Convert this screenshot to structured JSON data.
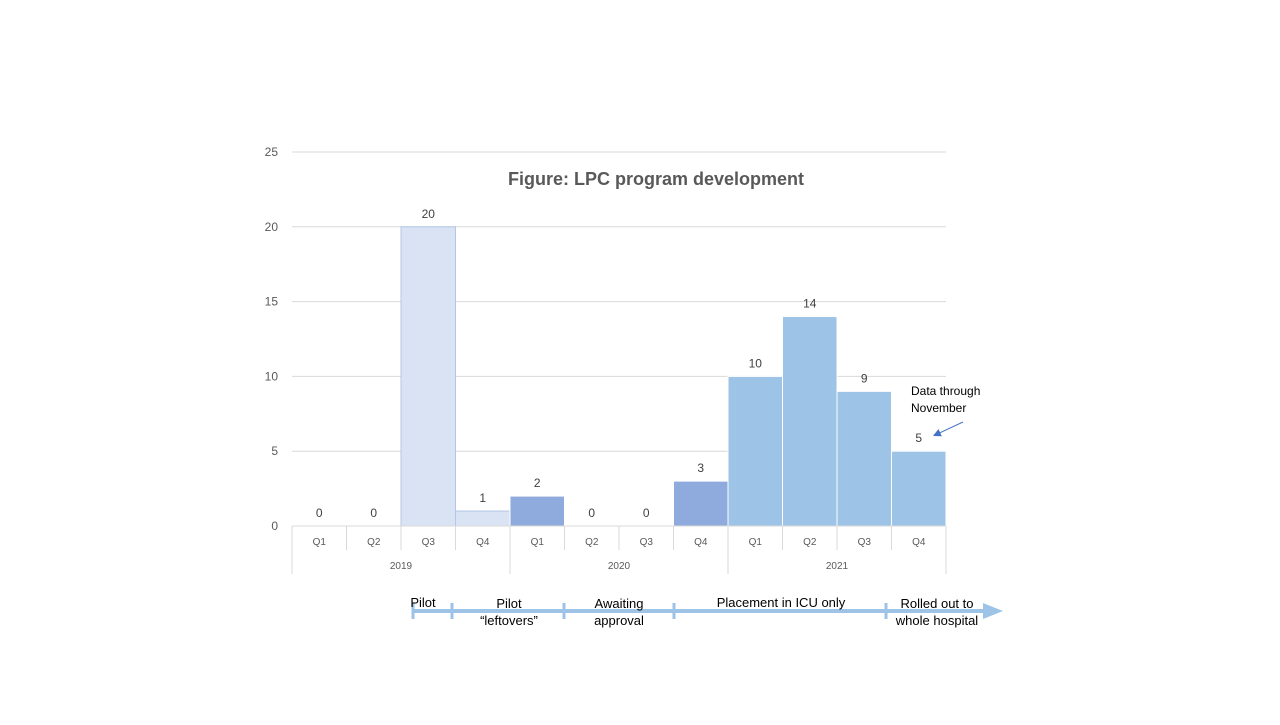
{
  "chart_data": {
    "type": "bar",
    "title": "Figure: LPC program  development",
    "xlabel": "",
    "ylabel": "",
    "ylim": [
      0,
      25
    ],
    "y_ticks": [
      0,
      5,
      10,
      15,
      20,
      25
    ],
    "grid": true,
    "legend": "none",
    "groups": [
      {
        "label": "2019",
        "categories": [
          "Q1",
          "Q2",
          "Q3",
          "Q4"
        ],
        "values": [
          0,
          0,
          20,
          1
        ],
        "colors": [
          "#dae3f3",
          "#dae3f3",
          "#dae3f3",
          "#dae3f3"
        ]
      },
      {
        "label": "2020",
        "categories": [
          "Q1",
          "Q2",
          "Q3",
          "Q4"
        ],
        "values": [
          2,
          0,
          0,
          3
        ],
        "colors": [
          "#8faadc",
          "#8faadc",
          "#8faadc",
          "#8faadc"
        ]
      },
      {
        "label": "2021",
        "categories": [
          "Q1",
          "Q2",
          "Q3",
          "Q4"
        ],
        "values": [
          10,
          14,
          9,
          5
        ],
        "colors": [
          "#9dc3e6",
          "#9dc3e6",
          "#9dc3e6",
          "#9dc3e6"
        ]
      }
    ],
    "annotation": {
      "line1": "Data through",
      "line2": "November",
      "target": {
        "group": 2,
        "category": 3
      }
    },
    "timeline": {
      "color": "#9dc3e6",
      "phases": [
        {
          "lines": [
            "Pilot"
          ],
          "start_q": 2,
          "end_q": 3
        },
        {
          "lines": [
            "Pilot",
            "“leftovers”"
          ],
          "start_q": 3,
          "end_q": 5
        },
        {
          "lines": [
            "Awaiting",
            "approval"
          ],
          "start_q": 5,
          "end_q": 7
        },
        {
          "lines": [
            "Placement in ICU only"
          ],
          "start_q": 7,
          "end_q": 11
        },
        {
          "lines": [
            "Rolled out to",
            "whole hospital"
          ],
          "start_q": 11,
          "end_q": 12
        }
      ]
    }
  }
}
